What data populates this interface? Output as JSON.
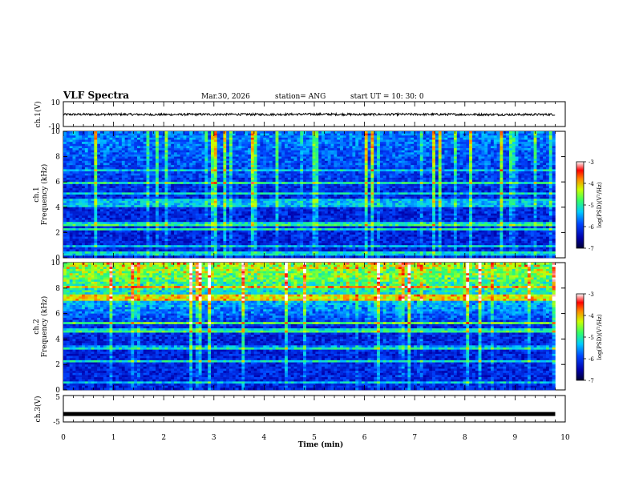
{
  "header": {
    "title": "VLF Spectra",
    "date": "Mar.30, 2026",
    "station": "station= ANG",
    "start": "start  UT =   10: 30: 0"
  },
  "colorbar": {
    "label": "log(PSD)(V²/Hz)",
    "ticks": [
      "-3",
      "-4",
      "-5",
      "-6",
      "-7"
    ],
    "range": [
      -7,
      -3
    ]
  },
  "chart_data": [
    {
      "type": "line",
      "name": "ch1-waveform",
      "ylabel": "ch.1(V)",
      "ylim": [
        -10,
        10
      ],
      "y_ticks": [
        "10",
        "-10"
      ],
      "x": [
        0,
        1,
        2,
        3,
        4,
        5,
        6,
        7,
        8,
        9,
        9.8
      ],
      "y": [
        -0.3,
        -0.2,
        -0.4,
        -0.2,
        -0.3,
        -0.1,
        -0.3,
        -0.2,
        -0.3,
        -0.4,
        -0.3
      ],
      "xlim": [
        0,
        10
      ]
    },
    {
      "type": "heatmap",
      "name": "ch1-spectrogram",
      "ylabel_top": "ch.1",
      "ylabel": "Frequency (kHz)",
      "ylim": [
        0,
        10
      ],
      "y_ticks": [
        "0",
        "2",
        "4",
        "6",
        "8",
        "10"
      ],
      "xlim": [
        0,
        10
      ],
      "data_end_min": 9.8,
      "z_range": [
        -7,
        -3
      ]
    },
    {
      "type": "heatmap",
      "name": "ch2-spectrogram",
      "ylabel_top": "ch.2",
      "ylabel": "Frequency (kHz)",
      "ylim": [
        0,
        10
      ],
      "y_ticks": [
        "0",
        "2",
        "4",
        "6",
        "8",
        "10"
      ],
      "xlim": [
        0,
        10
      ],
      "data_end_min": 9.8,
      "z_range": [
        -7,
        -3
      ]
    },
    {
      "type": "line",
      "name": "ch3-waveform",
      "ylabel": "ch.3(V)",
      "ylim": [
        -5,
        5
      ],
      "y_ticks": [
        "5",
        "-5"
      ],
      "x": [
        0,
        9.8
      ],
      "y": [
        -2,
        -2
      ],
      "xlim": [
        0,
        10
      ],
      "xlabel": "Time (min)",
      "x_ticks": [
        "0",
        "1",
        "2",
        "3",
        "4",
        "5",
        "6",
        "7",
        "8",
        "9",
        "10"
      ]
    }
  ]
}
